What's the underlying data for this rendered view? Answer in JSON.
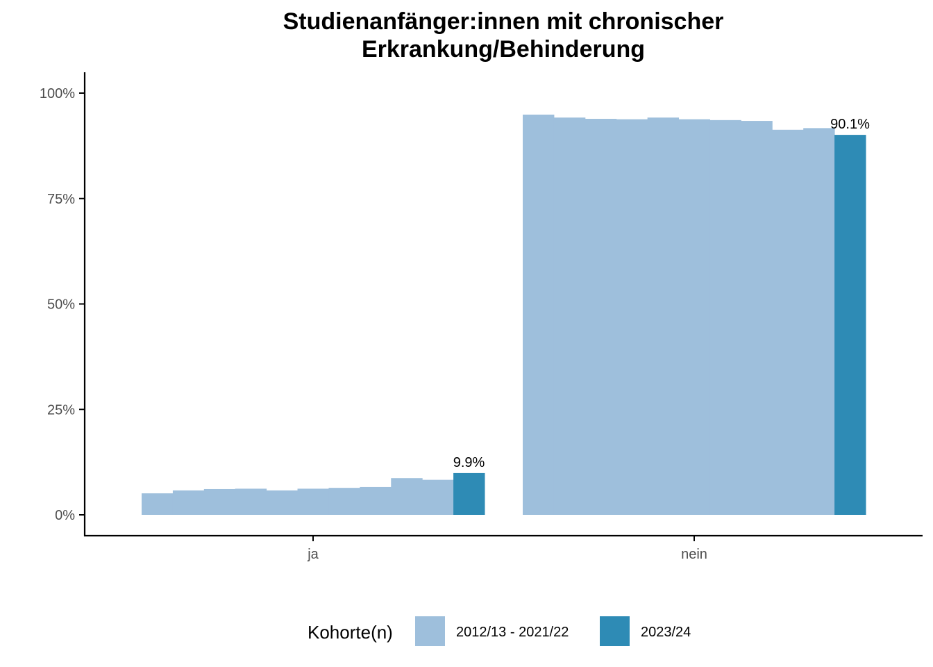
{
  "chart_data": {
    "type": "bar",
    "title": [
      "Studienanfänger:innen mit chronischer",
      "Erkrankung/Behinderung"
    ],
    "categories": [
      "ja",
      "nein"
    ],
    "ylim": [
      0,
      105
    ],
    "y_ticks": [
      0,
      25,
      50,
      75,
      100
    ],
    "y_tick_labels": [
      "0%",
      "25%",
      "50%",
      "75%",
      "100%"
    ],
    "grid": false,
    "legend_position": "bottom",
    "legend_title": "Kohorte(n)",
    "series": [
      {
        "name": "2012/13 - 2021/22",
        "color": "#9ebfdc",
        "values": {
          "ja": [
            5.1,
            5.8,
            6.1,
            6.2,
            5.8,
            6.2,
            6.4,
            6.6,
            8.7,
            8.3
          ],
          "nein": [
            94.9,
            94.2,
            93.9,
            93.8,
            94.2,
            93.8,
            93.6,
            93.4,
            91.3,
            91.7
          ]
        }
      },
      {
        "name": "2023/24",
        "color": "#2e8bb5",
        "values": {
          "ja": [
            9.9
          ],
          "nein": [
            90.1
          ]
        },
        "data_labels": {
          "ja": "9.9%",
          "nein": "90.1%"
        }
      }
    ]
  }
}
